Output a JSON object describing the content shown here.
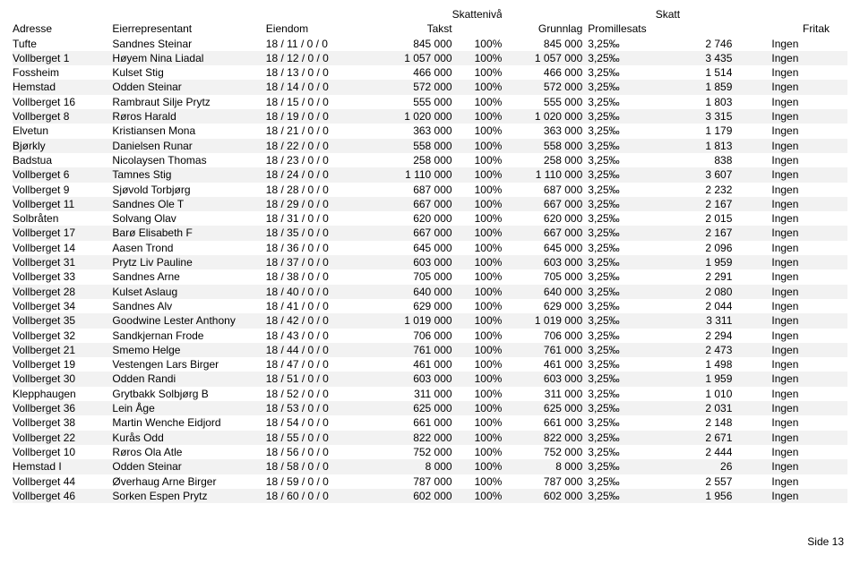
{
  "page": {
    "label": "Side 13"
  },
  "headers": {
    "super": {
      "niva": "Skattenivå",
      "skatt": "Skatt"
    },
    "cols": [
      "Adresse",
      "Eierrepresentant",
      "Eiendom",
      "Takst",
      "Grunnlag",
      "Promillesats",
      "Fritak"
    ]
  },
  "table": {
    "background_color": "#ffffff",
    "alt_row_color": "#f2f2f2",
    "font_size": 12,
    "columns": [
      "adresse",
      "eier",
      "eiendom",
      "takst",
      "niva",
      "grunnlag",
      "promille",
      "skatt",
      "fritak"
    ],
    "rows": [
      [
        "Tufte",
        "Sandnes Steinar",
        "18 / 11 / 0 / 0",
        "845 000",
        "100%",
        "845 000",
        "3,25‰",
        "2 746",
        "Ingen"
      ],
      [
        "Vollberget 1",
        "Høyem Nina Liadal",
        "18 / 12 / 0 / 0",
        "1 057 000",
        "100%",
        "1 057 000",
        "3,25‰",
        "3 435",
        "Ingen"
      ],
      [
        "Fossheim",
        "Kulset Stig",
        "18 / 13 / 0 / 0",
        "466 000",
        "100%",
        "466 000",
        "3,25‰",
        "1 514",
        "Ingen"
      ],
      [
        "Hemstad",
        "Odden Steinar",
        "18 / 14 / 0 / 0",
        "572 000",
        "100%",
        "572 000",
        "3,25‰",
        "1 859",
        "Ingen"
      ],
      [
        "Vollberget 16",
        "Rambraut Silje Prytz",
        "18 / 15 / 0 / 0",
        "555 000",
        "100%",
        "555 000",
        "3,25‰",
        "1 803",
        "Ingen"
      ],
      [
        "Vollberget 8",
        "Røros Harald",
        "18 / 19 / 0 / 0",
        "1 020 000",
        "100%",
        "1 020 000",
        "3,25‰",
        "3 315",
        "Ingen"
      ],
      [
        "Elvetun",
        "Kristiansen Mona",
        "18 / 21 / 0 / 0",
        "363 000",
        "100%",
        "363 000",
        "3,25‰",
        "1 179",
        "Ingen"
      ],
      [
        "Bjørkly",
        "Danielsen Runar",
        "18 / 22 / 0 / 0",
        "558 000",
        "100%",
        "558 000",
        "3,25‰",
        "1 813",
        "Ingen"
      ],
      [
        "Badstua",
        "Nicolaysen Thomas",
        "18 / 23 / 0 / 0",
        "258 000",
        "100%",
        "258 000",
        "3,25‰",
        "838",
        "Ingen"
      ],
      [
        "Vollberget 6",
        "Tamnes Stig",
        "18 / 24 / 0 / 0",
        "1 110 000",
        "100%",
        "1 110 000",
        "3,25‰",
        "3 607",
        "Ingen"
      ],
      [
        "Vollberget 9",
        "Sjøvold Torbjørg",
        "18 / 28 / 0 / 0",
        "687 000",
        "100%",
        "687 000",
        "3,25‰",
        "2 232",
        "Ingen"
      ],
      [
        "Vollberget 11",
        "Sandnes Ole T",
        "18 / 29 / 0 / 0",
        "667 000",
        "100%",
        "667 000",
        "3,25‰",
        "2 167",
        "Ingen"
      ],
      [
        "Solbråten",
        "Solvang Olav",
        "18 / 31 / 0 / 0",
        "620 000",
        "100%",
        "620 000",
        "3,25‰",
        "2 015",
        "Ingen"
      ],
      [
        "Vollberget 17",
        "Barø Elisabeth F",
        "18 / 35 / 0 / 0",
        "667 000",
        "100%",
        "667 000",
        "3,25‰",
        "2 167",
        "Ingen"
      ],
      [
        "Vollberget 14",
        "Aasen Trond",
        "18 / 36 / 0 / 0",
        "645 000",
        "100%",
        "645 000",
        "3,25‰",
        "2 096",
        "Ingen"
      ],
      [
        "Vollberget 31",
        "Prytz Liv Pauline",
        "18 / 37 / 0 / 0",
        "603 000",
        "100%",
        "603 000",
        "3,25‰",
        "1 959",
        "Ingen"
      ],
      [
        "Vollberget 33",
        "Sandnes Arne",
        "18 / 38 / 0 / 0",
        "705 000",
        "100%",
        "705 000",
        "3,25‰",
        "2 291",
        "Ingen"
      ],
      [
        "Vollberget 28",
        "Kulset Aslaug",
        "18 / 40 / 0 / 0",
        "640 000",
        "100%",
        "640 000",
        "3,25‰",
        "2 080",
        "Ingen"
      ],
      [
        "Vollberget 34",
        "Sandnes Alv",
        "18 / 41 / 0 / 0",
        "629 000",
        "100%",
        "629 000",
        "3,25‰",
        "2 044",
        "Ingen"
      ],
      [
        "Vollberget 35",
        "Goodwine Lester Anthony",
        "18 / 42 / 0 / 0",
        "1 019 000",
        "100%",
        "1 019 000",
        "3,25‰",
        "3 311",
        "Ingen"
      ],
      [
        "Vollberget 32",
        "Sandkjernan Frode",
        "18 / 43 / 0 / 0",
        "706 000",
        "100%",
        "706 000",
        "3,25‰",
        "2 294",
        "Ingen"
      ],
      [
        "Vollberget 21",
        "Smemo Helge",
        "18 / 44 / 0 / 0",
        "761 000",
        "100%",
        "761 000",
        "3,25‰",
        "2 473",
        "Ingen"
      ],
      [
        "Vollberget 19",
        "Vestengen Lars Birger",
        "18 / 47 / 0 / 0",
        "461 000",
        "100%",
        "461 000",
        "3,25‰",
        "1 498",
        "Ingen"
      ],
      [
        "Vollberget 30",
        "Odden Randi",
        "18 / 51 / 0 / 0",
        "603 000",
        "100%",
        "603 000",
        "3,25‰",
        "1 959",
        "Ingen"
      ],
      [
        "Klepphaugen",
        "Grytbakk Solbjørg B",
        "18 / 52 / 0 / 0",
        "311 000",
        "100%",
        "311 000",
        "3,25‰",
        "1 010",
        "Ingen"
      ],
      [
        "Vollberget 36",
        "Lein Åge",
        "18 / 53 / 0 / 0",
        "625 000",
        "100%",
        "625 000",
        "3,25‰",
        "2 031",
        "Ingen"
      ],
      [
        "Vollberget 38",
        "Martin Wenche Eidjord",
        "18 / 54 / 0 / 0",
        "661 000",
        "100%",
        "661 000",
        "3,25‰",
        "2 148",
        "Ingen"
      ],
      [
        "Vollberget 22",
        "Kurås Odd",
        "18 / 55 / 0 / 0",
        "822 000",
        "100%",
        "822 000",
        "3,25‰",
        "2 671",
        "Ingen"
      ],
      [
        "Vollberget 10",
        "Røros Ola Atle",
        "18 / 56 / 0 / 0",
        "752 000",
        "100%",
        "752 000",
        "3,25‰",
        "2 444",
        "Ingen"
      ],
      [
        "Hemstad I",
        "Odden Steinar",
        "18 / 58 / 0 / 0",
        "8 000",
        "100%",
        "8 000",
        "3,25‰",
        "26",
        "Ingen"
      ],
      [
        "Vollberget 44",
        "Øverhaug Arne Birger",
        "18 / 59 / 0 / 0",
        "787 000",
        "100%",
        "787 000",
        "3,25‰",
        "2 557",
        "Ingen"
      ],
      [
        "Vollberget 46",
        "Sorken Espen Prytz",
        "18 / 60 / 0 / 0",
        "602 000",
        "100%",
        "602 000",
        "3,25‰",
        "1 956",
        "Ingen"
      ]
    ]
  }
}
